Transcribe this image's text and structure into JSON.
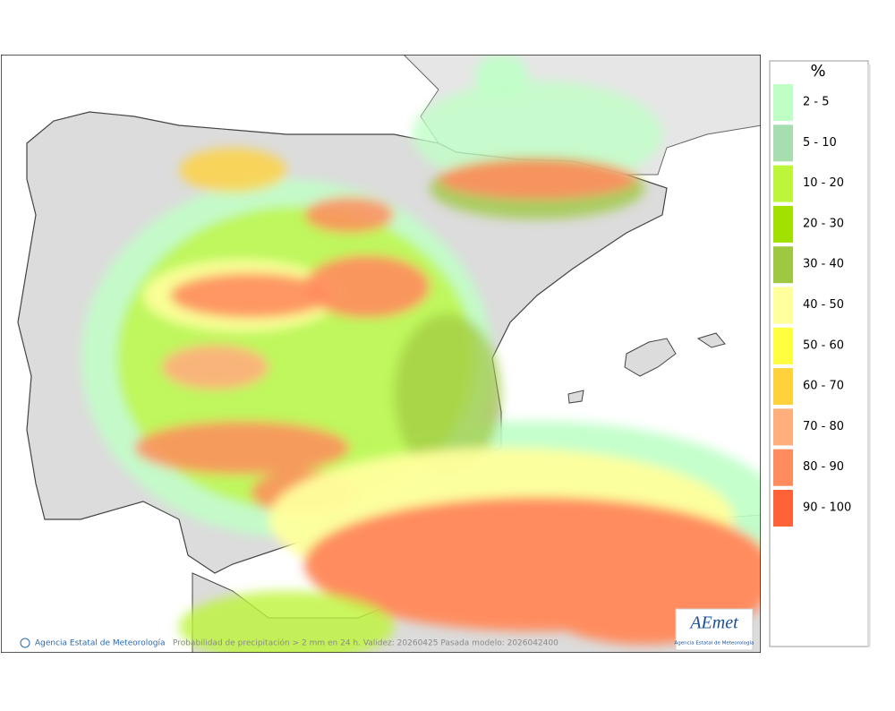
{
  "legend": {
    "unit": "%",
    "items": [
      {
        "label": "2 - 5",
        "color": "#bfffc6"
      },
      {
        "label": "5 - 10",
        "color": "#a6deb0"
      },
      {
        "label": "10 - 20",
        "color": "#bdf53a"
      },
      {
        "label": "20 - 30",
        "color": "#a2e000"
      },
      {
        "label": "30 - 40",
        "color": "#9fc842"
      },
      {
        "label": "40 - 50",
        "color": "#ffff9c"
      },
      {
        "label": "50 - 60",
        "color": "#ffff40"
      },
      {
        "label": "60 - 70",
        "color": "#ffd23c"
      },
      {
        "label": "70 - 80",
        "color": "#ffae7c"
      },
      {
        "label": "80 - 90",
        "color": "#ff8c5e"
      },
      {
        "label": "90 - 100",
        "color": "#ff6236"
      }
    ]
  },
  "footer": {
    "credit": "Agencia Estatal de Meteorología",
    "caption": "Probabilidad de precipitación > 2 mm en 24 h. Validez: 20260425 Pasada modelo: 2026042400"
  },
  "logo": {
    "name": "AEmet",
    "subtitle": "Agencia Estatal de Meteorología"
  }
}
